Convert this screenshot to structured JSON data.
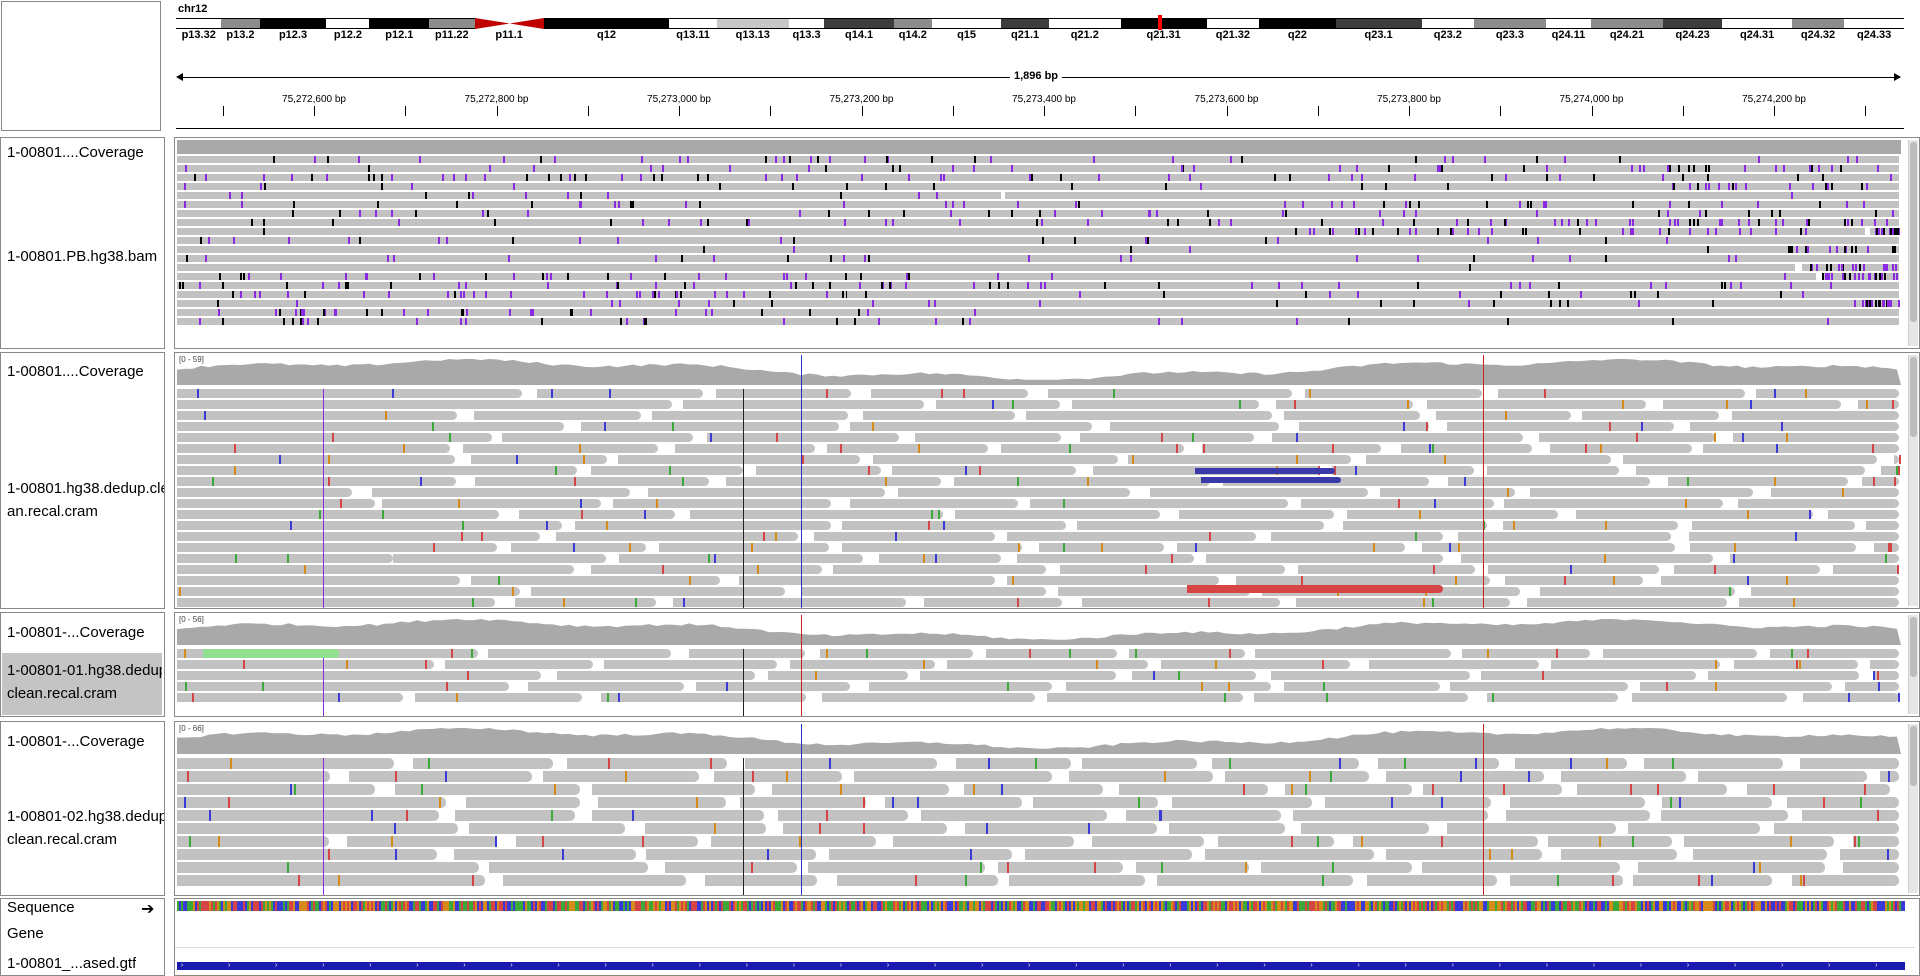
{
  "chromosome": "chr12",
  "ideogram": {
    "bands": [
      {
        "label": "p13.32",
        "stain": "white"
      },
      {
        "label": "p13.2",
        "stain": "gray"
      },
      {
        "label": "p12.3",
        "stain": "black"
      },
      {
        "label": "p12.2",
        "stain": "white"
      },
      {
        "label": "p12.1",
        "stain": "black"
      },
      {
        "label": "p11.22",
        "stain": "gray"
      },
      {
        "label": "p11.1",
        "stain": "centromere"
      },
      {
        "label": "q12",
        "stain": "black"
      },
      {
        "label": "q13.11",
        "stain": "white"
      },
      {
        "label": "q13.13",
        "stain": "lightgray"
      },
      {
        "label": "q13.3",
        "stain": "white"
      },
      {
        "label": "q14.1",
        "stain": "darkgray"
      },
      {
        "label": "q14.2",
        "stain": "gray"
      },
      {
        "label": "q15",
        "stain": "white"
      },
      {
        "label": "q21.1",
        "stain": "darkgray"
      },
      {
        "label": "q21.2",
        "stain": "white"
      },
      {
        "label": "q21.31",
        "stain": "black"
      },
      {
        "label": "q21.32",
        "stain": "white"
      },
      {
        "label": "q22",
        "stain": "black"
      },
      {
        "label": "q23.1",
        "stain": "darkgray"
      },
      {
        "label": "q23.2",
        "stain": "white"
      },
      {
        "label": "q23.3",
        "stain": "gray"
      },
      {
        "label": "q24.11",
        "stain": "white"
      },
      {
        "label": "q24.21",
        "stain": "gray"
      },
      {
        "label": "q24.23",
        "stain": "darkgray"
      },
      {
        "label": "q24.31",
        "stain": "white"
      },
      {
        "label": "q24.32",
        "stain": "gray"
      },
      {
        "label": "q24.33",
        "stain": "white"
      }
    ]
  },
  "ruler": {
    "span": "1,896 bp",
    "ticks": [
      "75,272,600 bp",
      "75,272,800 bp",
      "75,273,000 bp",
      "75,273,200 bp",
      "75,273,400 bp",
      "75,273,600 bp",
      "75,273,800 bp",
      "75,274,000 bp",
      "75,274,200 bp"
    ]
  },
  "tracks": [
    {
      "coverage_label": "1-00801....Coverage",
      "alignment_label_lines": [
        "1-00801.PB.hg38.bam"
      ],
      "range": "",
      "selected": false
    },
    {
      "coverage_label": "1-00801....Coverage",
      "alignment_label_lines": [
        "1-00801.hg38.dedup.cle",
        "an.recal.cram"
      ],
      "range": "[0 - 59]",
      "selected": false
    },
    {
      "coverage_label": "1-00801-...Coverage",
      "alignment_label_lines": [
        "1-00801-01.hg38.dedup.",
        "clean.recal.cram"
      ],
      "range": "[0 - 56]",
      "selected": true
    },
    {
      "coverage_label": "1-00801-...Coverage",
      "alignment_label_lines": [
        "1-00801-02.hg38.dedup.",
        "clean.recal.cram"
      ],
      "range": "[0 - 66]",
      "selected": false
    }
  ],
  "bottom": {
    "sequence_label": "Sequence",
    "gene_label": "Gene",
    "gtf_label": "1-00801_...ased.gtf"
  },
  "colors": {
    "read": "#c2c2c2",
    "coverage": "#a9a9a9",
    "insertion": "#8a2be2",
    "del_discordant": "#3a3aa8",
    "ins_discordant": "#d64545",
    "soft_clip_green": "#90e090",
    "gtf_feature": "#1a1ab0"
  }
}
